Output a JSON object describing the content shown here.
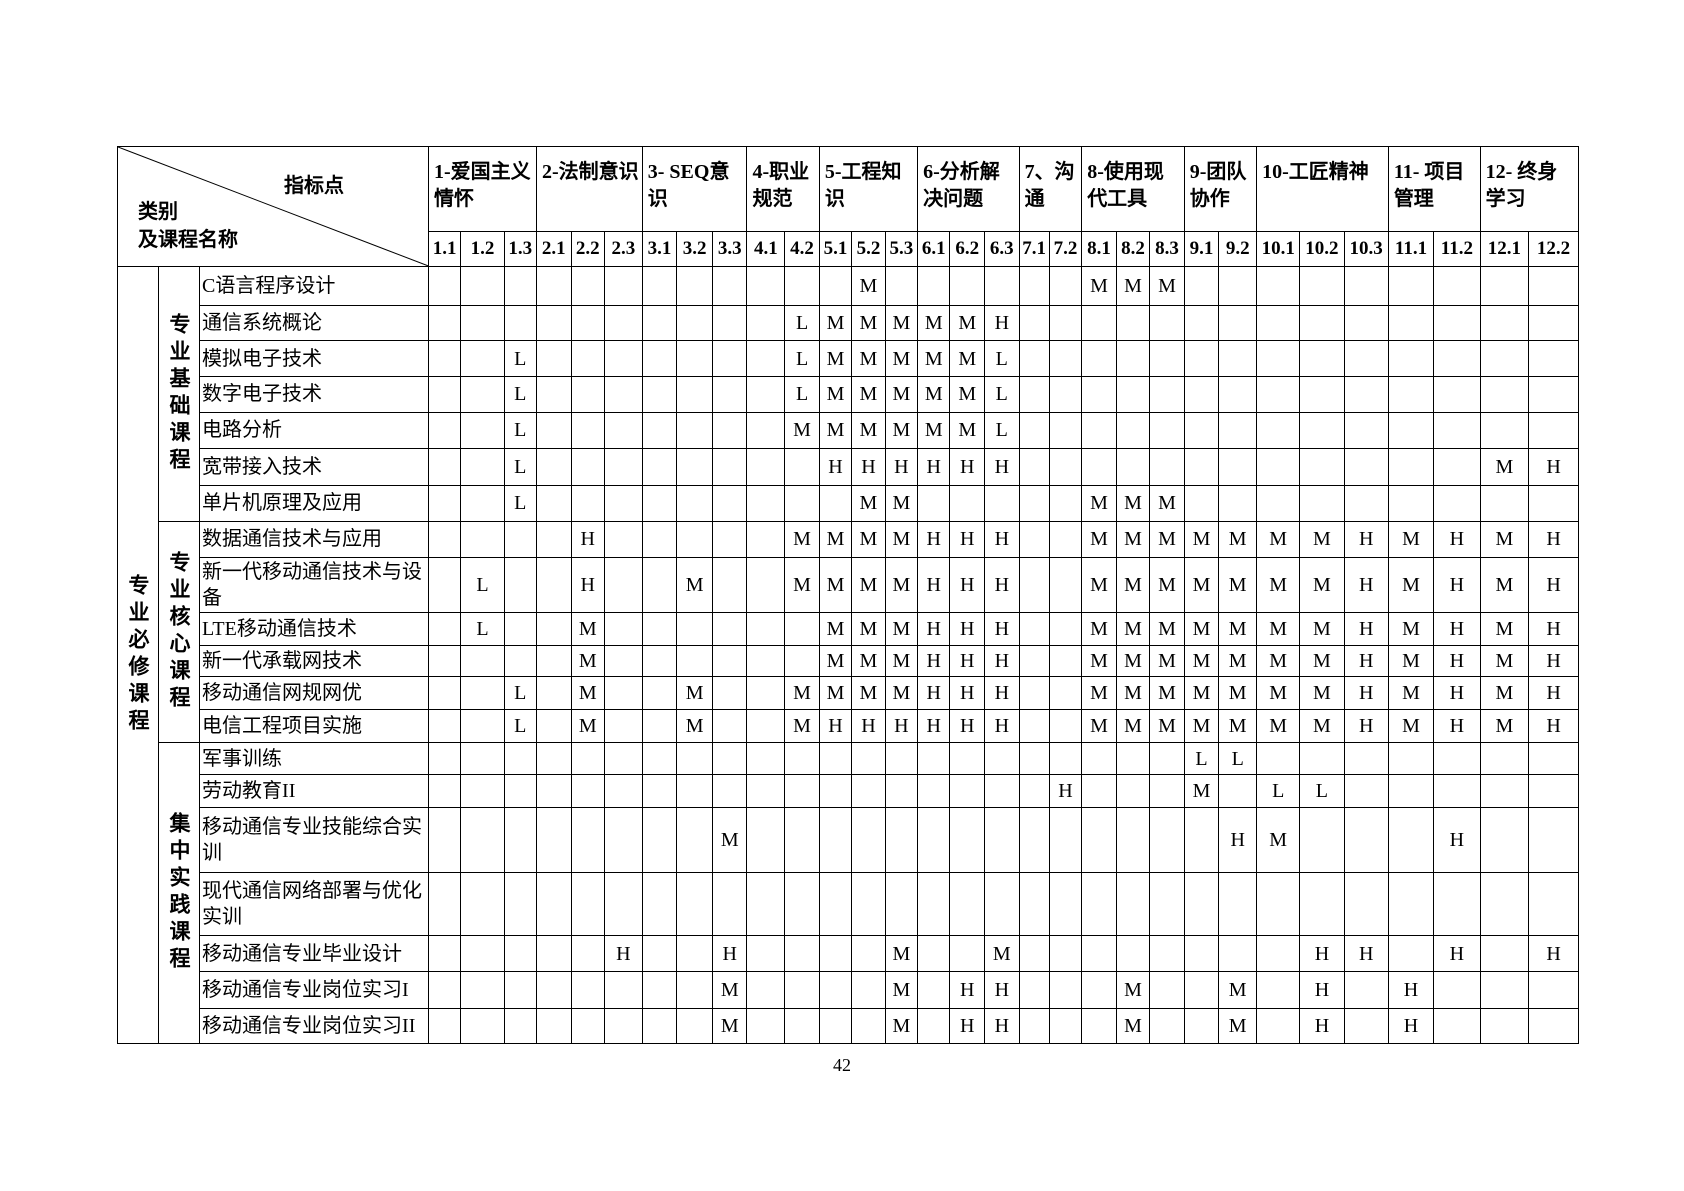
{
  "header": {
    "corner_top": "指标点",
    "corner_bottom_1": "类别",
    "corner_bottom_2": "及课程名称",
    "groups": [
      {
        "label": "1-爱国主义情怀",
        "points": [
          "1.1",
          "1.2",
          "1.3"
        ]
      },
      {
        "label": "2-法制意识",
        "points": [
          "2.1",
          "2.2",
          "2.3"
        ]
      },
      {
        "label": "3- SEQ意识",
        "points": [
          "3.1",
          "3.2",
          "3.3"
        ]
      },
      {
        "label": "4-职业规范",
        "points": [
          "4.1",
          "4.2"
        ]
      },
      {
        "label": "5-工程知识",
        "points": [
          "5.1",
          "5.2",
          "5.3"
        ]
      },
      {
        "label": "6-分析解决问题",
        "points": [
          "6.1",
          "6.2",
          "6.3"
        ]
      },
      {
        "label": "7、沟通",
        "points": [
          "7.1",
          "7.2"
        ]
      },
      {
        "label": "8-使用现代工具",
        "points": [
          "8.1",
          "8.2",
          "8.3"
        ]
      },
      {
        "label": "9-团队协作",
        "points": [
          "9.1",
          "9.2"
        ]
      },
      {
        "label": "10-工匠精神",
        "points": [
          "10.1",
          "10.2",
          "10.3"
        ]
      },
      {
        "label": "11- 项目管理",
        "points": [
          "11.1",
          "11.2"
        ]
      },
      {
        "label": "12- 终身学习",
        "points": [
          "12.1",
          "12.2"
        ]
      }
    ]
  },
  "sections": [
    {
      "label": "专业必修课程",
      "subsections": [
        {
          "label": "专业基础课程",
          "rows": [
            {
              "course": "C语言程序设计",
              "cells": [
                null,
                null,
                null,
                null,
                null,
                null,
                null,
                null,
                null,
                null,
                null,
                null,
                "M",
                null,
                null,
                null,
                null,
                null,
                null,
                "M",
                "M",
                "M",
                null,
                null,
                null,
                null,
                null,
                null,
                null,
                null,
                null
              ]
            },
            {
              "course": "通信系统概论",
              "cells": [
                null,
                null,
                null,
                null,
                null,
                null,
                null,
                null,
                null,
                null,
                "L",
                "M",
                "M",
                "M",
                "M",
                "M",
                "H",
                null,
                null,
                null,
                null,
                null,
                null,
                null,
                null,
                null,
                null,
                null,
                null,
                null,
                null
              ]
            },
            {
              "course": "模拟电子技术",
              "cells": [
                null,
                null,
                "L",
                null,
                null,
                null,
                null,
                null,
                null,
                null,
                "L",
                "M",
                "M",
                "M",
                "M",
                "M",
                "L",
                null,
                null,
                null,
                null,
                null,
                null,
                null,
                null,
                null,
                null,
                null,
                null,
                null,
                null
              ]
            },
            {
              "course": "数字电子技术",
              "cells": [
                null,
                null,
                "L",
                null,
                null,
                null,
                null,
                null,
                null,
                null,
                "L",
                "M",
                "M",
                "M",
                "M",
                "M",
                "L",
                null,
                null,
                null,
                null,
                null,
                null,
                null,
                null,
                null,
                null,
                null,
                null,
                null,
                null
              ]
            },
            {
              "course": "电路分析",
              "cells": [
                null,
                null,
                "L",
                null,
                null,
                null,
                null,
                null,
                null,
                null,
                "M",
                "M",
                "M",
                "M",
                "M",
                "M",
                "L",
                null,
                null,
                null,
                null,
                null,
                null,
                null,
                null,
                null,
                null,
                null,
                null,
                null,
                null
              ]
            },
            {
              "course": "宽带接入技术",
              "cells": [
                null,
                null,
                "L",
                null,
                null,
                null,
                null,
                null,
                null,
                null,
                null,
                "H",
                "H",
                "H",
                "H",
                "H",
                "H",
                null,
                null,
                null,
                null,
                null,
                null,
                null,
                null,
                null,
                null,
                null,
                null,
                "M",
                "H"
              ]
            },
            {
              "course": "单片机原理及应用",
              "cells": [
                null,
                null,
                "L",
                null,
                null,
                null,
                null,
                null,
                null,
                null,
                null,
                null,
                "M",
                "M",
                null,
                null,
                null,
                null,
                null,
                "M",
                "M",
                "M",
                null,
                null,
                null,
                null,
                null,
                null,
                null,
                null,
                null
              ]
            }
          ]
        },
        {
          "label": "专业核心课程",
          "rows": [
            {
              "course": "数据通信技术与应用",
              "cells": [
                null,
                null,
                null,
                null,
                "H",
                null,
                null,
                null,
                null,
                null,
                "M",
                "M",
                "M",
                "M",
                "H",
                "H",
                "H",
                null,
                null,
                "M",
                "M",
                "M",
                "M",
                "M",
                "M",
                "M",
                "H",
                "M",
                "H",
                "M",
                "H"
              ]
            },
            {
              "course": "新一代移动通信技术与设备",
              "cells": [
                null,
                "L",
                null,
                null,
                "H",
                null,
                null,
                "M",
                null,
                null,
                "M",
                "M",
                "M",
                "M",
                "H",
                "H",
                "H",
                null,
                null,
                "M",
                "M",
                "M",
                "M",
                "M",
                "M",
                "M",
                "H",
                "M",
                "H",
                "M",
                "H"
              ]
            },
            {
              "course": "LTE移动通信技术",
              "cells": [
                null,
                "L",
                null,
                null,
                "M",
                null,
                null,
                null,
                null,
                null,
                null,
                "M",
                "M",
                "M",
                "H",
                "H",
                "H",
                null,
                null,
                "M",
                "M",
                "M",
                "M",
                "M",
                "M",
                "M",
                "H",
                "M",
                "H",
                "M",
                "H"
              ]
            },
            {
              "course": "新一代承载网技术",
              "cells": [
                null,
                null,
                null,
                null,
                "M",
                null,
                null,
                null,
                null,
                null,
                null,
                "M",
                "M",
                "M",
                "H",
                "H",
                "H",
                null,
                null,
                "M",
                "M",
                "M",
                "M",
                "M",
                "M",
                "M",
                "H",
                "M",
                "H",
                "M",
                "H"
              ]
            },
            {
              "course": "移动通信网规网优",
              "cells": [
                null,
                null,
                "L",
                null,
                "M",
                null,
                null,
                "M",
                null,
                null,
                "M",
                "M",
                "M",
                "M",
                "H",
                "H",
                "H",
                null,
                null,
                "M",
                "M",
                "M",
                "M",
                "M",
                "M",
                "M",
                "H",
                "M",
                "H",
                "M",
                "H"
              ]
            },
            {
              "course": "电信工程项目实施",
              "cells": [
                null,
                null,
                "L",
                null,
                "M",
                null,
                null,
                "M",
                null,
                null,
                "M",
                "H",
                "H",
                "H",
                "H",
                "H",
                "H",
                null,
                null,
                "M",
                "M",
                "M",
                "M",
                "M",
                "M",
                "M",
                "H",
                "M",
                "H",
                "M",
                "H"
              ]
            }
          ]
        },
        {
          "label": "集中实践课程",
          "rows": [
            {
              "course": "军事训练",
              "cells": [
                null,
                null,
                null,
                null,
                null,
                null,
                null,
                null,
                null,
                null,
                null,
                null,
                null,
                null,
                null,
                null,
                null,
                null,
                null,
                null,
                null,
                null,
                "L",
                "L",
                null,
                null,
                null,
                null,
                null,
                null,
                null
              ]
            },
            {
              "course": "劳动教育II",
              "cells": [
                null,
                null,
                null,
                null,
                null,
                null,
                null,
                null,
                null,
                null,
                null,
                null,
                null,
                null,
                null,
                null,
                null,
                null,
                "H",
                null,
                null,
                null,
                "M",
                null,
                "L",
                "L",
                null,
                null,
                null,
                null,
                null
              ]
            },
            {
              "course": "移动通信专业技能综合实训",
              "cells": [
                null,
                null,
                null,
                null,
                null,
                null,
                null,
                null,
                "M",
                null,
                null,
                null,
                null,
                null,
                null,
                null,
                null,
                null,
                null,
                null,
                null,
                null,
                null,
                "H",
                "M",
                null,
                null,
                null,
                "H",
                null,
                null
              ]
            },
            {
              "course": "现代通信网络部署与优化实训",
              "cells": [
                null,
                null,
                null,
                null,
                null,
                null,
                null,
                null,
                null,
                null,
                null,
                null,
                null,
                null,
                null,
                null,
                null,
                null,
                null,
                null,
                null,
                null,
                null,
                null,
                null,
                null,
                null,
                null,
                null,
                null,
                null
              ]
            },
            {
              "course": "移动通信专业毕业设计",
              "cells": [
                null,
                null,
                null,
                null,
                null,
                "H",
                null,
                null,
                "H",
                null,
                null,
                null,
                null,
                "M",
                null,
                null,
                "M",
                null,
                null,
                null,
                null,
                null,
                null,
                null,
                null,
                "H",
                "H",
                null,
                "H",
                null,
                "H"
              ]
            },
            {
              "course": "移动通信专业岗位实习I",
              "cells": [
                null,
                null,
                null,
                null,
                null,
                null,
                null,
                null,
                "M",
                null,
                null,
                null,
                null,
                "M",
                null,
                "H",
                "H",
                null,
                null,
                null,
                "M",
                null,
                null,
                "M",
                null,
                "H",
                null,
                "H",
                null,
                null,
                null
              ]
            },
            {
              "course": "移动通信专业岗位实习II",
              "cells": [
                null,
                null,
                null,
                null,
                null,
                null,
                null,
                null,
                "M",
                null,
                null,
                null,
                null,
                "M",
                null,
                "H",
                "H",
                null,
                null,
                null,
                "M",
                null,
                null,
                "M",
                null,
                "H",
                null,
                "H",
                null,
                null,
                null
              ]
            }
          ]
        }
      ]
    }
  ],
  "footer": {
    "page_number": "42"
  }
}
